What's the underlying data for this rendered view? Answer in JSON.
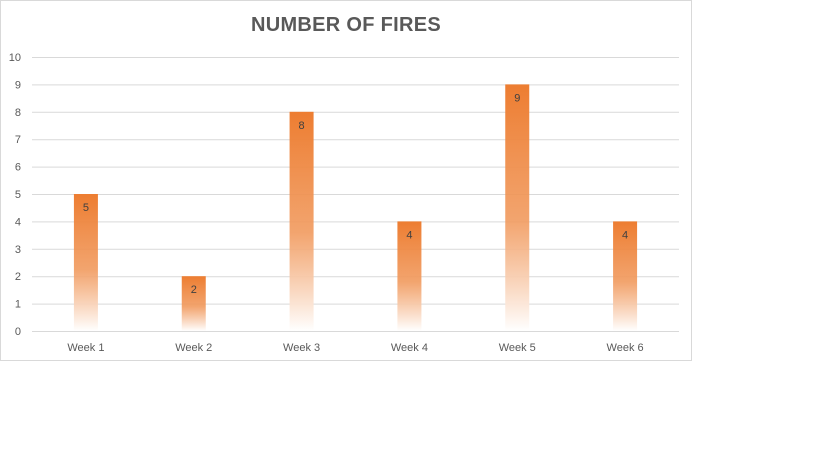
{
  "chart_data": {
    "type": "bar",
    "title": "NUMBER OF FIRES",
    "categories": [
      "Week 1",
      "Week 2",
      "Week 3",
      "Week 4",
      "Week 5",
      "Week 6"
    ],
    "values": [
      5,
      2,
      8,
      4,
      9,
      4
    ],
    "data_labels": [
      "5",
      "2",
      "8",
      "4",
      "9",
      "4"
    ],
    "y_ticks": [
      "0",
      "1",
      "2",
      "3",
      "4",
      "5",
      "6",
      "7",
      "8",
      "9",
      "10"
    ],
    "ylim": [
      0,
      10
    ],
    "xlabel": "",
    "ylabel": "",
    "grid": true,
    "legend": "none",
    "bar_color_top": "#ED7D31",
    "bar_color_bottom": "#FFFFFF",
    "gridline_color": "#D9D9D9",
    "text_color": "#595959"
  }
}
